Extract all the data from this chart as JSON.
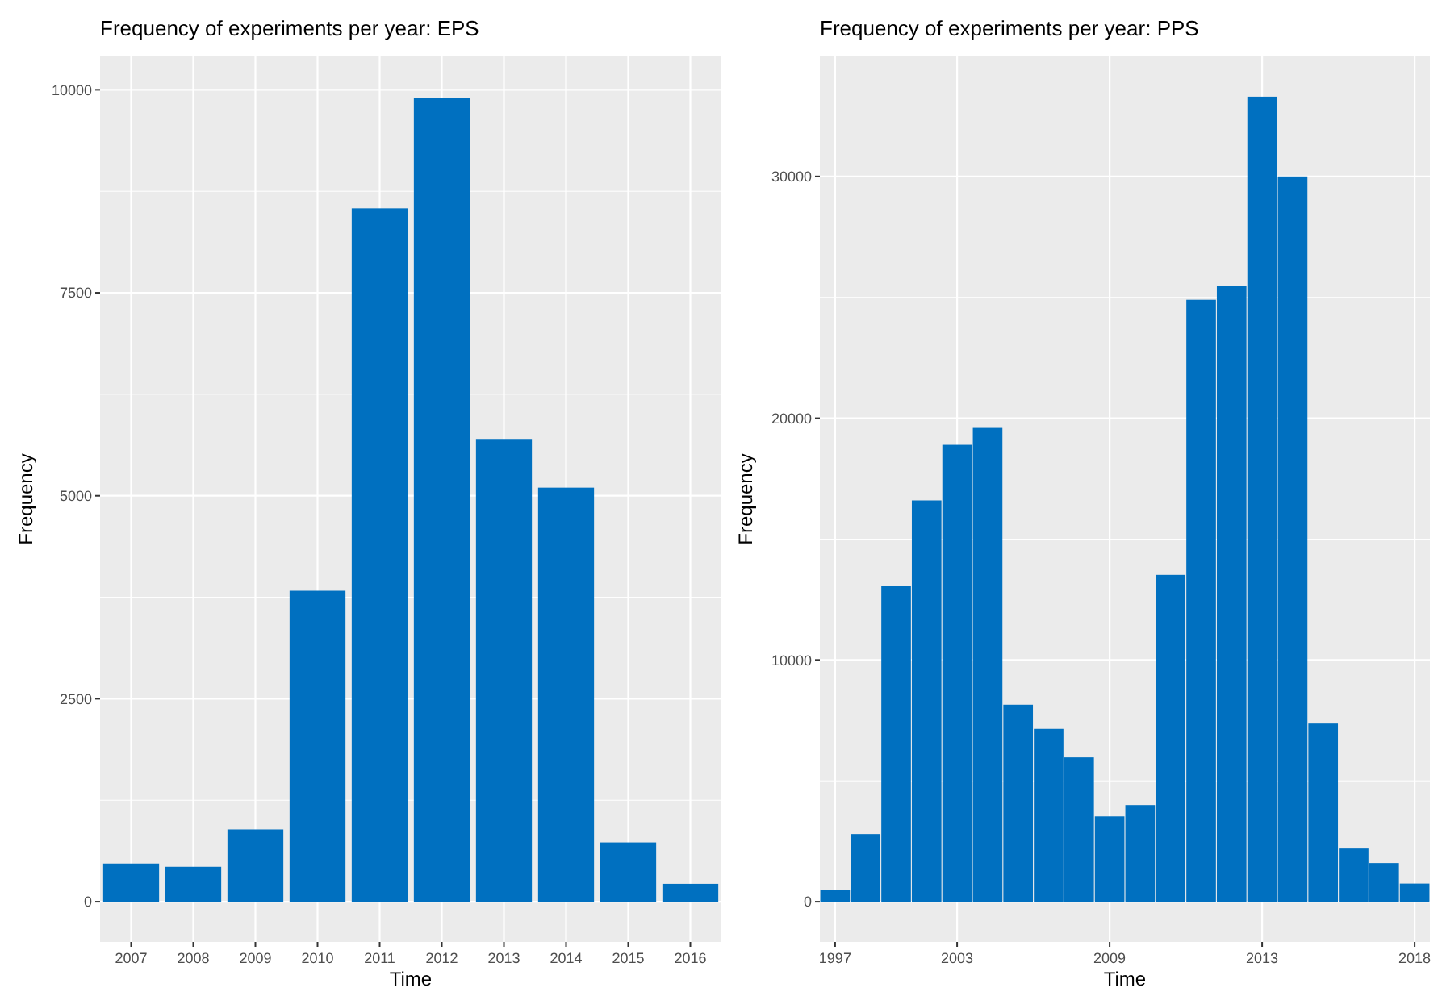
{
  "chart_data": [
    {
      "type": "bar",
      "title": "Frequency of experiments per year: EPS",
      "xlabel": "Time",
      "ylabel": "Frequency",
      "categories": [
        "2007",
        "2008",
        "2009",
        "2010",
        "2011",
        "2012",
        "2013",
        "2014",
        "2015",
        "2016"
      ],
      "values": [
        470,
        430,
        890,
        3830,
        8540,
        9900,
        5700,
        5100,
        730,
        220
      ],
      "color": "#0070c0",
      "ylim": [
        -496,
        10411
      ],
      "yticks": [
        0,
        2500,
        5000,
        7500,
        10000
      ],
      "grid": true
    },
    {
      "type": "bar",
      "title": "Frequency of experiments per year: PPS",
      "xlabel": "Time",
      "ylabel": "Frequency",
      "categories": [
        "1997",
        null,
        null,
        null,
        "2003",
        null,
        null,
        null,
        null,
        "2009",
        null,
        null,
        null,
        null,
        "2013",
        null,
        null,
        null,
        null,
        "2018"
      ],
      "values": [
        470,
        2800,
        13050,
        16600,
        18900,
        19600,
        8150,
        7150,
        5970,
        3530,
        4000,
        13520,
        24900,
        25490,
        33300,
        30000,
        7370,
        2200,
        1600,
        750
      ],
      "color": "#0070c0",
      "ylim": [
        -1665,
        34965
      ],
      "yticks": [
        0,
        10000,
        20000,
        30000
      ],
      "grid": true
    }
  ]
}
